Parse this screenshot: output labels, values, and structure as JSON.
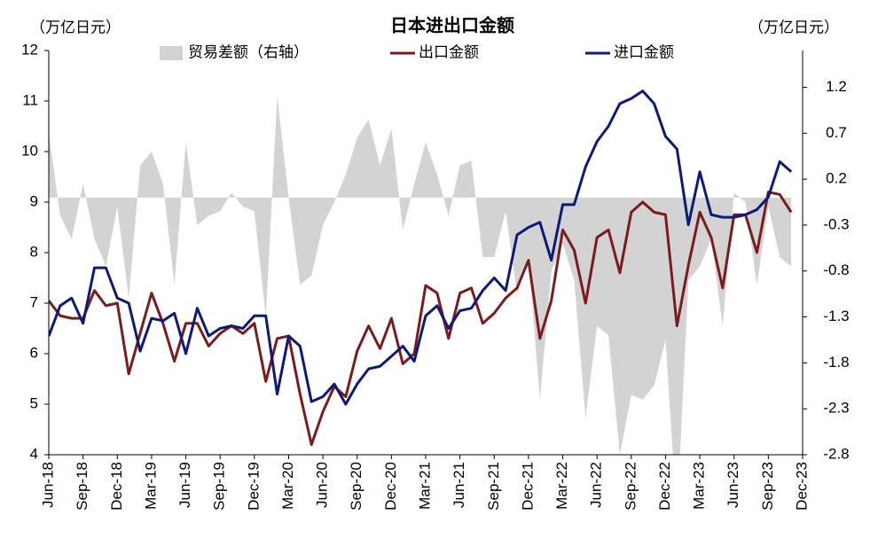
{
  "chart_data": {
    "type": "line",
    "title": "日本进出口金额",
    "y_label": "（万亿日元）",
    "y2_label": "（万亿日元）",
    "categories": [
      "Jun-18",
      null,
      null,
      "Sep-18",
      null,
      null,
      "Dec-18",
      null,
      null,
      "Mar-19",
      null,
      null,
      "Jun-19",
      null,
      null,
      "Sep-19",
      null,
      null,
      "Dec-19",
      null,
      null,
      "Mar-20",
      null,
      null,
      "Jun-20",
      null,
      null,
      "Sep-20",
      null,
      null,
      "Dec-20",
      null,
      null,
      "Mar-21",
      null,
      null,
      "Jun-21",
      null,
      null,
      "Sep-21",
      null,
      null,
      "Dec-21",
      null,
      null,
      "Mar-22",
      null,
      null,
      "Jun-22",
      null,
      null,
      "Sep-22",
      null,
      null,
      "Dec-22",
      null,
      null,
      "Mar-23",
      null,
      null,
      "Jun-23",
      null,
      null,
      "Sep-23",
      null,
      null,
      "Dec-23"
    ],
    "series": [
      {
        "name": "贸易差额（右轴）",
        "type": "area",
        "axis": "y2",
        "color": "#d3d3d3",
        "values": [
          0.7,
          -0.2,
          -0.45,
          0.15,
          -0.45,
          -0.75,
          -0.1,
          -1.1,
          0.35,
          0.5,
          0.15,
          -0.95,
          0.6,
          -0.3,
          -0.2,
          -0.15,
          0.05,
          -0.1,
          -0.15,
          -1.3,
          1.1,
          0.0,
          -0.95,
          -0.85,
          -0.3,
          -0.05,
          0.25,
          0.65,
          0.85,
          0.35,
          0.75,
          -0.35,
          0.15,
          0.6,
          0.25,
          -0.2,
          0.35,
          0.4,
          -0.65,
          -0.65,
          -0.15,
          -1.05,
          -0.65,
          -2.2,
          -0.8,
          -0.5,
          -0.9,
          -2.4,
          -1.4,
          -1.5,
          -2.8,
          -2.15,
          -2.2,
          -2.05,
          -1.55,
          -3.5,
          -0.9,
          -0.75,
          -0.45,
          -1.4,
          0.05,
          -0.05,
          -0.95,
          -0.1,
          -0.65,
          -0.75,
          null
        ]
      },
      {
        "name": "出口金额",
        "type": "line",
        "color": "#7a1c1c",
        "values": [
          7.05,
          6.75,
          6.7,
          6.7,
          7.25,
          6.95,
          7.0,
          5.6,
          6.4,
          7.2,
          6.6,
          5.85,
          6.6,
          6.6,
          6.15,
          6.4,
          6.55,
          6.4,
          6.6,
          5.45,
          6.3,
          6.35,
          5.2,
          4.2,
          4.85,
          5.35,
          5.15,
          6.05,
          6.55,
          6.1,
          6.7,
          5.8,
          6.0,
          7.35,
          7.2,
          6.3,
          7.2,
          7.3,
          6.6,
          6.8,
          7.1,
          7.3,
          7.85,
          6.3,
          7.05,
          8.45,
          8.05,
          7.0,
          8.3,
          8.45,
          7.6,
          8.8,
          9.0,
          8.8,
          8.75,
          6.55,
          7.75,
          8.8,
          8.3,
          7.3,
          8.75,
          8.75,
          8.0,
          9.2,
          9.15,
          8.8,
          null
        ]
      },
      {
        "name": "进口金额",
        "type": "line",
        "color": "#0d1a78",
        "values": [
          6.35,
          6.95,
          7.1,
          6.6,
          7.7,
          7.7,
          7.1,
          7.0,
          6.05,
          6.7,
          6.65,
          6.8,
          6.0,
          6.9,
          6.35,
          6.5,
          6.55,
          6.5,
          6.75,
          6.75,
          5.2,
          6.35,
          6.15,
          5.05,
          5.15,
          5.4,
          5.0,
          5.4,
          5.7,
          5.75,
          5.95,
          6.15,
          5.85,
          6.75,
          6.95,
          6.5,
          6.85,
          6.9,
          7.25,
          7.5,
          7.25,
          8.35,
          8.5,
          8.6,
          7.85,
          8.95,
          8.95,
          9.7,
          10.2,
          10.5,
          10.95,
          11.05,
          11.2,
          10.95,
          10.3,
          10.05,
          8.55,
          9.6,
          8.75,
          8.7,
          8.7,
          8.75,
          8.85,
          9.1,
          9.8,
          9.6,
          null
        ]
      }
    ],
    "ylim": [
      4,
      12
    ],
    "yticks": [
      4,
      5,
      6,
      7,
      8,
      9,
      10,
      11,
      12
    ],
    "y2lim": [
      -2.8,
      1.6
    ],
    "y2ticks": [
      -2.8,
      -2.3,
      -1.8,
      -1.3,
      -0.8,
      -0.3,
      0.2,
      0.7,
      1.2
    ]
  }
}
